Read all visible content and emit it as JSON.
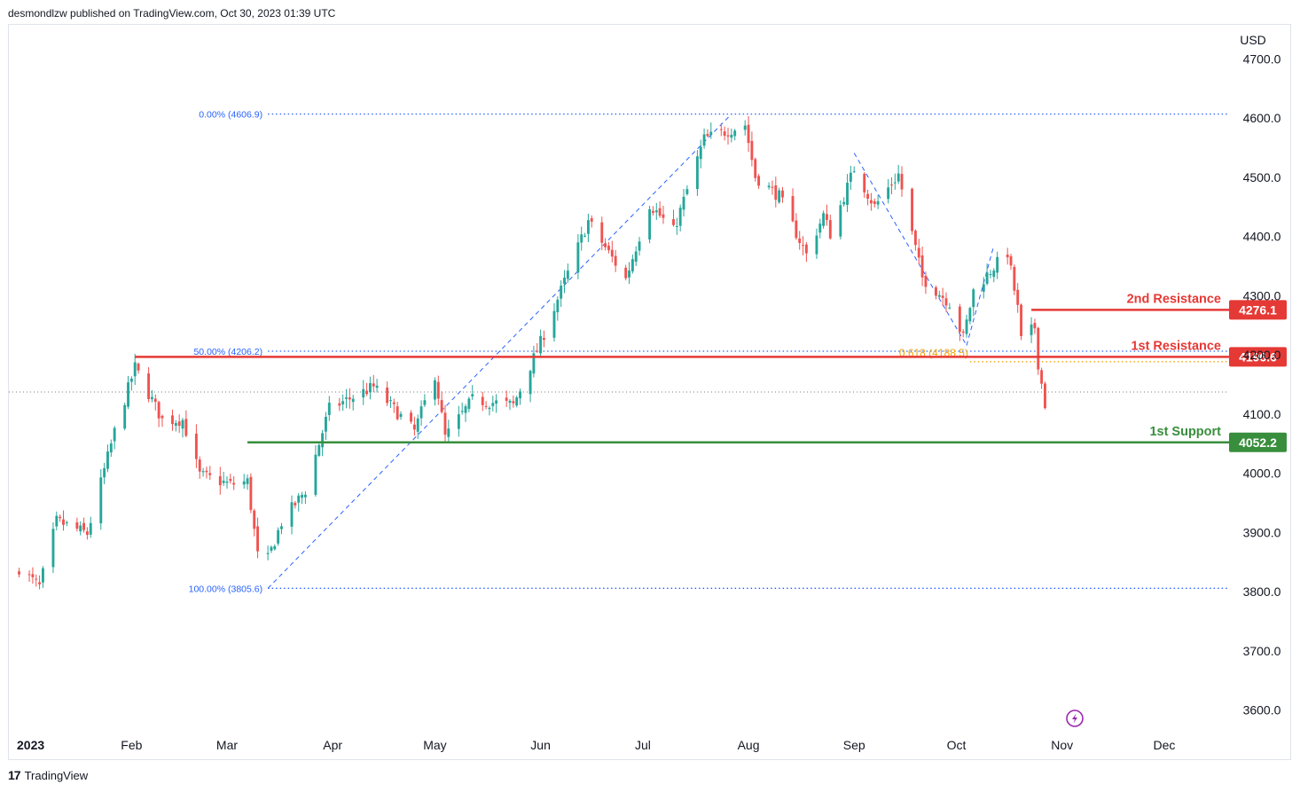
{
  "header": {
    "publisher_line": "desmondlzw published on TradingView.com, Oct 30, 2023 01:39 UTC"
  },
  "footer": {
    "brand": "TradingView",
    "logo_glyph": "17"
  },
  "colors": {
    "up": "#26a69a",
    "down": "#ef5350",
    "resistance": "#e53935",
    "support": "#388e3c",
    "fib": "#2962ff",
    "fib618": "#f0a30a",
    "axis_text": "#131722"
  },
  "chart_data": {
    "type": "candlestick",
    "currency": "USD",
    "ylim": [
      3550,
      4750
    ],
    "y_ticks": [
      3600,
      3700,
      3800,
      3900,
      4000,
      4100,
      4200,
      4300,
      4400,
      4500,
      4600,
      4700
    ],
    "y_tick_labels": [
      "3600.0",
      "3700.0",
      "3800.0",
      "3900.0",
      "4000.0",
      "4100.0",
      "4200.0",
      "4300.0",
      "4400.0",
      "4500.0",
      "4600.0",
      "4700.0"
    ],
    "x_labels": [
      {
        "label": "2023",
        "date": "2023-01-01",
        "bold": true
      },
      {
        "label": "Feb",
        "date": "2023-02-01"
      },
      {
        "label": "Mar",
        "date": "2023-03-01"
      },
      {
        "label": "Apr",
        "date": "2023-04-01"
      },
      {
        "label": "May",
        "date": "2023-05-01"
      },
      {
        "label": "Jun",
        "date": "2023-06-01"
      },
      {
        "label": "Jul",
        "date": "2023-07-01"
      },
      {
        "label": "Aug",
        "date": "2023-08-01"
      },
      {
        "label": "Sep",
        "date": "2023-09-01"
      },
      {
        "label": "Oct",
        "date": "2023-10-01"
      },
      {
        "label": "Nov",
        "date": "2023-11-01"
      },
      {
        "label": "Dec",
        "date": "2023-12-01"
      }
    ],
    "x_range": [
      "2022-12-27",
      "2023-12-20"
    ],
    "levels": [
      {
        "label": "2nd Resistance",
        "value": 4276.1,
        "value_label": "4276.1",
        "kind": "resistance",
        "start": "2023-10-23"
      },
      {
        "label": "1st Resistance",
        "value": 4196.6,
        "value_label": "4196.6",
        "kind": "resistance",
        "start": "2023-02-02"
      },
      {
        "label": "1st Support",
        "value": 4052.2,
        "value_label": "4052.2",
        "kind": "support",
        "start": "2023-03-07"
      }
    ],
    "fib_levels": [
      {
        "label": "0.00% (4606.9)",
        "value": 4606.9,
        "start": "2023-03-13"
      },
      {
        "label": "50.00% (4206.2)",
        "value": 4206.2,
        "start": "2023-03-13"
      },
      {
        "label": "100.00% (3805.6)",
        "value": 3805.6,
        "start": "2023-03-13"
      }
    ],
    "fib_618": {
      "label": "0.618 (4188.5)",
      "value": 4188.5,
      "start": "2023-10-05"
    },
    "last_price": 4137.2,
    "trend_lines": [
      {
        "from": {
          "date": "2023-03-13",
          "value": 3805.6
        },
        "to": {
          "date": "2023-07-27",
          "value": 4606.9
        }
      },
      {
        "from": {
          "date": "2023-09-01",
          "value": 4541
        },
        "to": {
          "date": "2023-10-04",
          "value": 4216
        }
      },
      {
        "from": {
          "date": "2023-10-04",
          "value": 4216
        },
        "to": {
          "date": "2023-10-12",
          "value": 4385
        }
      }
    ],
    "anchors": [
      [
        "2022-12-30",
        3840
      ],
      [
        "2023-01-05",
        3808
      ],
      [
        "2023-01-10",
        3919
      ],
      [
        "2023-01-19",
        3898
      ],
      [
        "2023-01-27",
        4070
      ],
      [
        "2023-02-02",
        4179
      ],
      [
        "2023-02-10",
        4090
      ],
      [
        "2023-02-16",
        4090
      ],
      [
        "2023-02-21",
        3997
      ],
      [
        "2023-03-02",
        3981
      ],
      [
        "2023-03-07",
        3986
      ],
      [
        "2023-03-10",
        3861
      ],
      [
        "2023-03-13",
        3855
      ],
      [
        "2023-03-17",
        3917
      ],
      [
        "2023-03-24",
        3971
      ],
      [
        "2023-03-31",
        4109
      ],
      [
        "2023-04-13",
        4146
      ],
      [
        "2023-04-25",
        4071
      ],
      [
        "2023-05-01",
        4167
      ],
      [
        "2023-05-04",
        4061
      ],
      [
        "2023-05-12",
        4124
      ],
      [
        "2023-05-24",
        4115
      ],
      [
        "2023-06-01",
        4221
      ],
      [
        "2023-06-15",
        4426
      ],
      [
        "2023-06-26",
        4328
      ],
      [
        "2023-07-03",
        4455
      ],
      [
        "2023-07-10",
        4409
      ],
      [
        "2023-07-19",
        4565
      ],
      [
        "2023-07-31",
        4589
      ],
      [
        "2023-08-03",
        4501
      ],
      [
        "2023-08-10",
        4468
      ],
      [
        "2023-08-18",
        4369
      ],
      [
        "2023-08-23",
        4436
      ],
      [
        "2023-08-25",
        4405
      ],
      [
        "2023-09-01",
        4515
      ],
      [
        "2023-09-07",
        4451
      ],
      [
        "2023-09-14",
        4505
      ],
      [
        "2023-09-21",
        4330
      ],
      [
        "2023-09-29",
        4288
      ],
      [
        "2023-10-03",
        4229
      ],
      [
        "2023-10-06",
        4308
      ],
      [
        "2023-10-12",
        4349
      ],
      [
        "2023-10-16",
        4373
      ],
      [
        "2023-10-19",
        4278
      ],
      [
        "2023-10-20",
        4224
      ],
      [
        "2023-10-24",
        4247
      ],
      [
        "2023-10-25",
        4186
      ],
      [
        "2023-10-27",
        4117
      ]
    ]
  }
}
